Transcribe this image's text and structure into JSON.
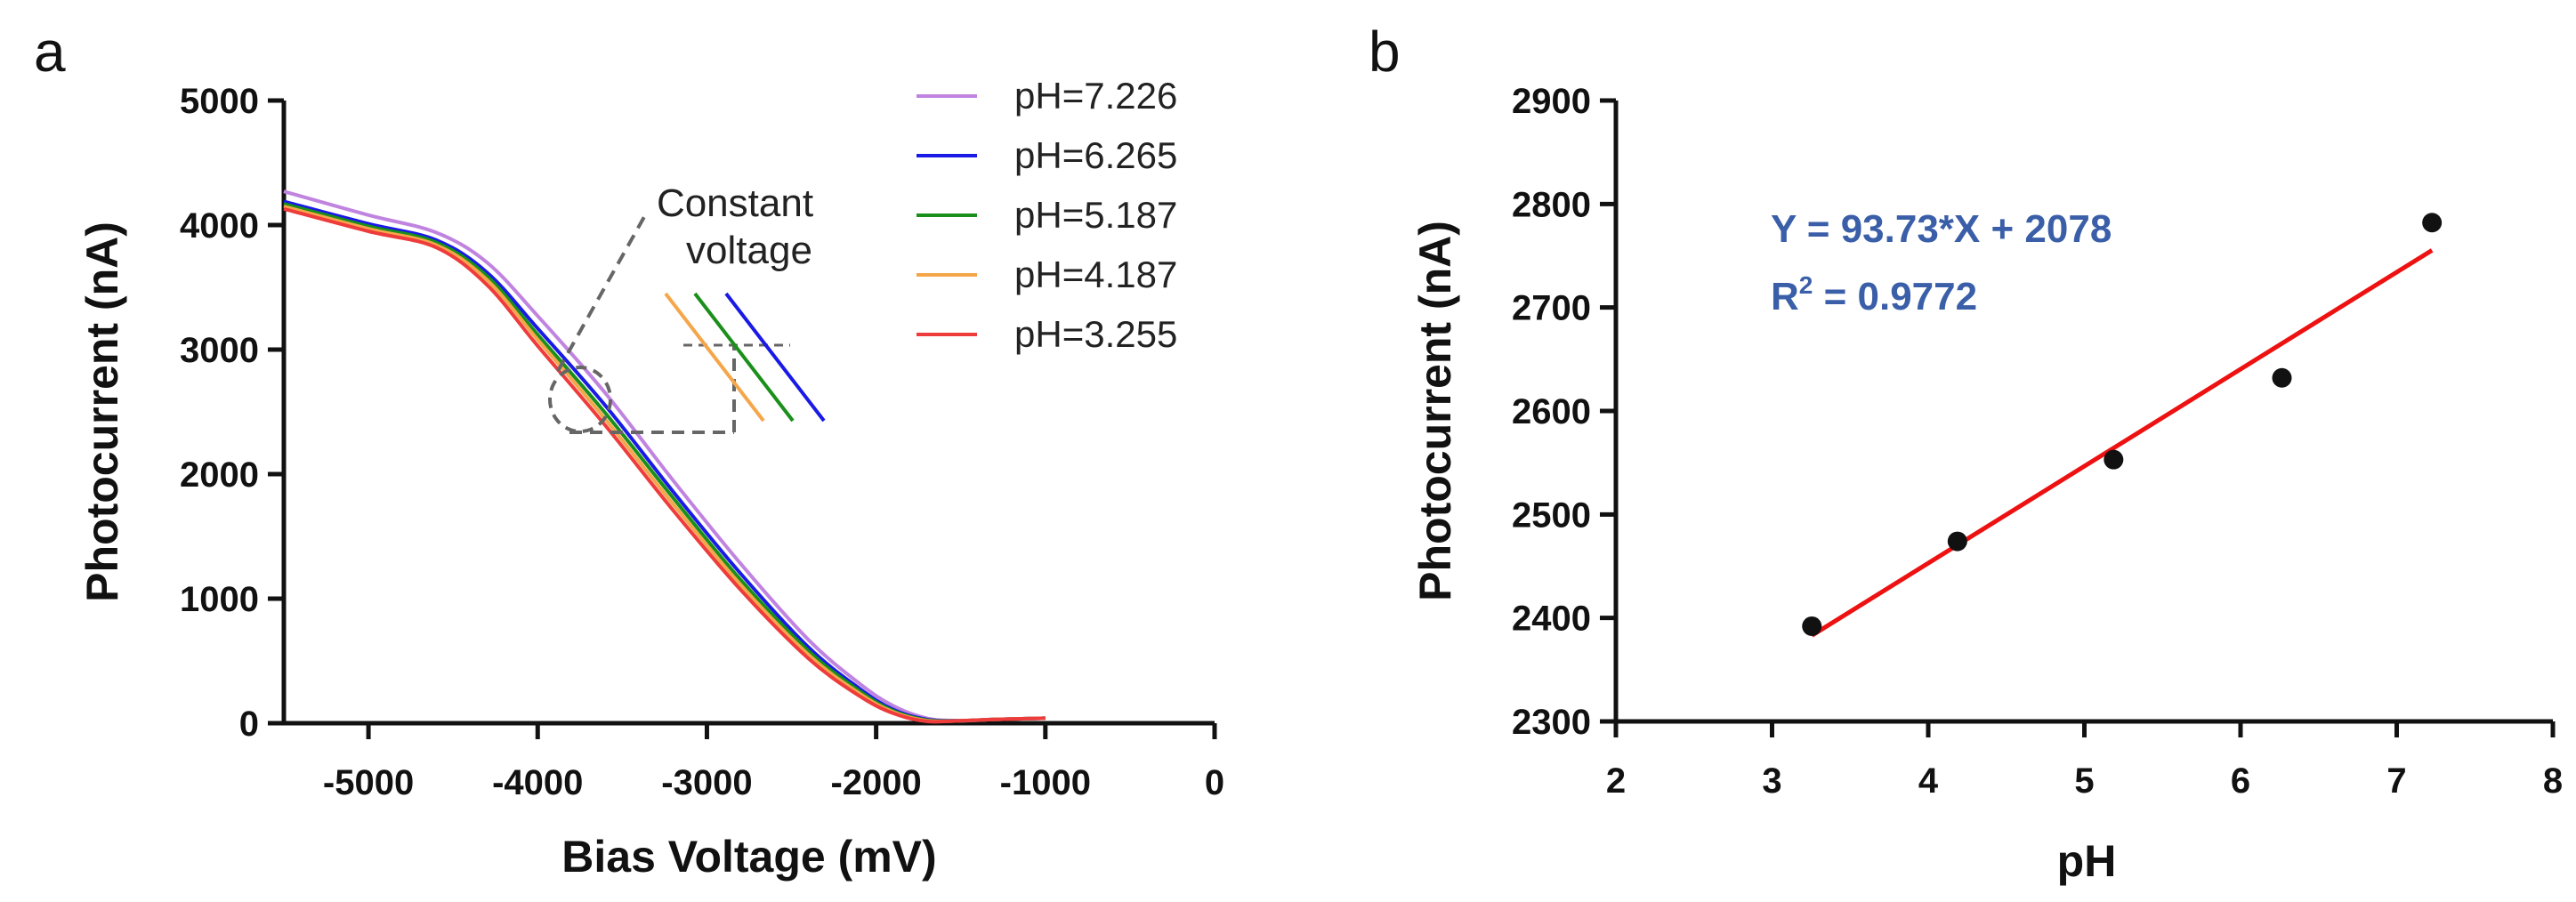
{
  "chart_data": [
    {
      "panel": "a",
      "type": "line",
      "title": "",
      "xlabel": "Bias Voltage (mV)",
      "ylabel": "Photocurrent (nA)",
      "xlim": [
        -5500,
        0
      ],
      "ylim": [
        0,
        5000
      ],
      "xticks": [
        -5000,
        -4000,
        -3000,
        -2000,
        -1000,
        0
      ],
      "yticks": [
        0,
        1000,
        2000,
        3000,
        4000,
        5000
      ],
      "xtick_labels": [
        "-5000",
        "-4000",
        "-3000",
        "-2000",
        "-1000",
        "0"
      ],
      "ytick_labels": [
        "0",
        "1000",
        "2000",
        "3000",
        "4000",
        "5000"
      ],
      "legend_position": "top-right",
      "series": [
        {
          "name": "pH=7.226",
          "color": "#c084e0",
          "x": [
            -5500,
            -5000,
            -4600,
            -4300,
            -4000,
            -3600,
            -3200,
            -2800,
            -2400,
            -2100,
            -1900,
            -1700,
            -1500,
            -1300,
            -1000
          ],
          "y": [
            4270,
            4080,
            3940,
            3700,
            3270,
            2650,
            1950,
            1280,
            670,
            320,
            140,
            40,
            20,
            30,
            40
          ]
        },
        {
          "name": "pH=6.265",
          "color": "#1a1ae6",
          "x": [
            -5500,
            -5000,
            -4600,
            -4300,
            -4000,
            -3600,
            -3200,
            -2800,
            -2400,
            -2100,
            -1900,
            -1700,
            -1500,
            -1300,
            -1000
          ],
          "y": [
            4190,
            4010,
            3880,
            3620,
            3170,
            2550,
            1860,
            1200,
            610,
            280,
            110,
            30,
            20,
            30,
            40
          ]
        },
        {
          "name": "pH=5.187",
          "color": "#1a8f1a",
          "x": [
            -5500,
            -5000,
            -4600,
            -4300,
            -4000,
            -3600,
            -3200,
            -2800,
            -2400,
            -2100,
            -1900,
            -1700,
            -1500,
            -1300,
            -1000
          ],
          "y": [
            4170,
            3990,
            3860,
            3590,
            3120,
            2490,
            1810,
            1150,
            580,
            260,
            100,
            25,
            20,
            30,
            40
          ]
        },
        {
          "name": "pH=4.187",
          "color": "#f5a64a",
          "x": [
            -5500,
            -5000,
            -4600,
            -4300,
            -4000,
            -3600,
            -3200,
            -2800,
            -2400,
            -2100,
            -1900,
            -1700,
            -1500,
            -1300,
            -1000
          ],
          "y": [
            4150,
            3970,
            3840,
            3560,
            3080,
            2440,
            1760,
            1110,
            550,
            240,
            90,
            20,
            20,
            30,
            40
          ]
        },
        {
          "name": "pH=3.255",
          "color": "#ee3b3b",
          "x": [
            -5500,
            -5000,
            -4600,
            -4300,
            -4000,
            -3600,
            -3200,
            -2800,
            -2400,
            -2100,
            -1900,
            -1700,
            -1500,
            -1300,
            -1000
          ],
          "y": [
            4130,
            3950,
            3820,
            3520,
            3030,
            2390,
            1710,
            1070,
            520,
            220,
            80,
            15,
            20,
            30,
            40
          ]
        }
      ],
      "annotation": {
        "line1": "Constant",
        "line2": "voltage",
        "at_x": -3700,
        "at_y": 2600
      }
    },
    {
      "panel": "b",
      "type": "scatter",
      "title": "",
      "xlabel": "pH",
      "ylabel": "Photocurrent (nA)",
      "xlim": [
        2,
        8
      ],
      "ylim": [
        2300,
        2900
      ],
      "xticks": [
        2,
        3,
        4,
        5,
        6,
        7,
        8
      ],
      "yticks": [
        2300,
        2400,
        2500,
        2600,
        2700,
        2800,
        2900
      ],
      "xtick_labels": [
        "2",
        "3",
        "4",
        "5",
        "6",
        "7",
        "8"
      ],
      "ytick_labels": [
        "2300",
        "2400",
        "2500",
        "2600",
        "2700",
        "2800",
        "2900"
      ],
      "points": {
        "x": [
          3.255,
          4.187,
          5.187,
          6.265,
          7.226
        ],
        "y": [
          2392,
          2474,
          2553,
          2632,
          2782
        ]
      },
      "fit": {
        "slope": 93.73,
        "intercept": 2078,
        "x_range": [
          3.255,
          7.226
        ],
        "color": "#ee1111",
        "equation": "Y = 93.73*X + 2078",
        "r2_prefix": "R",
        "r2_sup": "2",
        "r2_value": " = 0.9772",
        "text_color": "#3a5fa8"
      }
    }
  ]
}
